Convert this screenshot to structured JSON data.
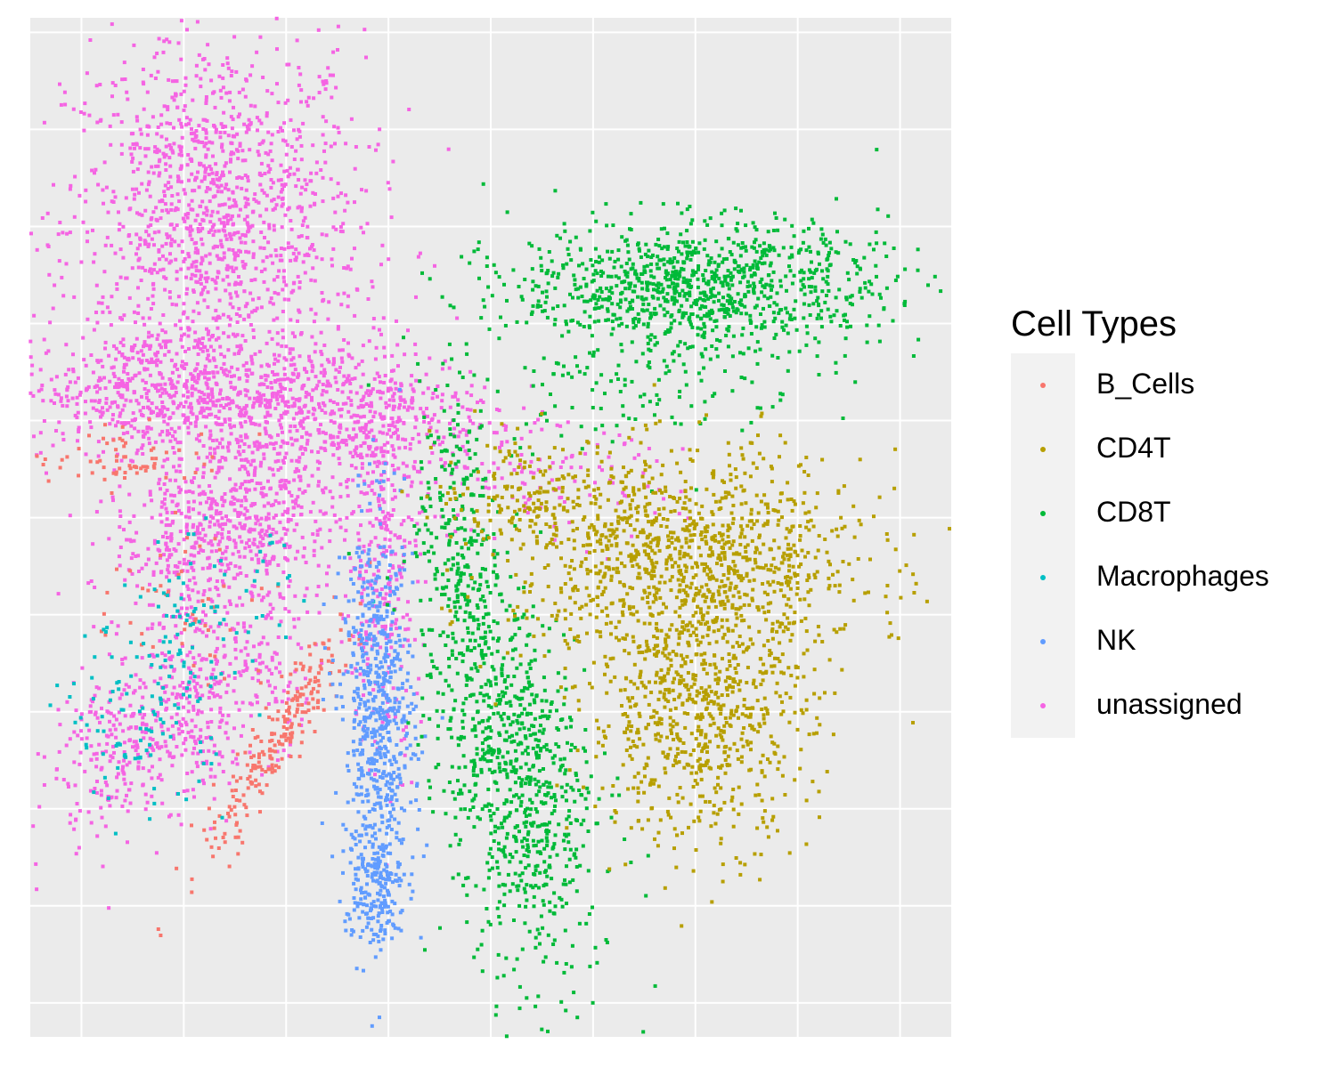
{
  "chart_data": {
    "type": "scatter",
    "title": "",
    "xlabel": "",
    "ylabel": "",
    "xlim": [
      -5.5,
      12.5
    ],
    "ylim": [
      -9.2,
      11.8
    ],
    "grid": true,
    "axis_ticks_shown": false,
    "legend": {
      "title": "Cell Types",
      "placement": "right",
      "entries": [
        {
          "label": "B_Cells",
          "color": "#F8766D"
        },
        {
          "label": "CD4T",
          "color": "#B79F00"
        },
        {
          "label": "CD8T",
          "color": "#00BA38"
        },
        {
          "label": "Macrophages",
          "color": "#00BFC4"
        },
        {
          "label": "NK",
          "color": "#619CFF"
        },
        {
          "label": "unassigned",
          "color": "#F564E3"
        }
      ]
    },
    "panel_background": "#EBEBEB",
    "gridline_color": "#FFFFFF",
    "series": [
      {
        "name": "unassigned",
        "color": "#F564E3",
        "clusters": [
          {
            "cx": -1.9,
            "cy": 7.5,
            "sx": 1.45,
            "sy": 2.0,
            "n": 1400
          },
          {
            "cx": -3.0,
            "cy": 4.1,
            "sx": 1.4,
            "sy": 0.6,
            "n": 500
          },
          {
            "cx": 0.3,
            "cy": 3.7,
            "sx": 1.6,
            "sy": 0.7,
            "n": 600
          },
          {
            "cx": -1.6,
            "cy": 1.3,
            "sx": 1.2,
            "sy": 0.9,
            "n": 700,
            "rot": 35
          },
          {
            "cx": -2.6,
            "cy": -2.6,
            "sx": 1.6,
            "sy": 0.8,
            "n": 600,
            "rot": 40
          },
          {
            "cx": 1.4,
            "cy": 0.8,
            "sx": 0.35,
            "sy": 2.2,
            "n": 300
          },
          {
            "cx": 4.2,
            "cy": 2.2,
            "sx": 1.5,
            "sy": 0.6,
            "n": 120
          }
        ]
      },
      {
        "name": "B_Cells",
        "color": "#F8766D",
        "clusters": [
          {
            "cx": -0.6,
            "cy": -3.0,
            "sx": 0.25,
            "sy": 1.4,
            "n": 220,
            "rot": -30
          },
          {
            "cx": -3.5,
            "cy": 2.7,
            "sx": 1.0,
            "sy": 0.3,
            "n": 70
          },
          {
            "cx": -2.5,
            "cy": -0.5,
            "sx": 1.0,
            "sy": 1.0,
            "n": 50
          }
        ]
      },
      {
        "name": "Macrophages",
        "color": "#00BFC4",
        "clusters": [
          {
            "cx": -3.2,
            "cy": -2.5,
            "sx": 0.8,
            "sy": 0.9,
            "n": 110
          },
          {
            "cx": -2.0,
            "cy": -0.5,
            "sx": 0.9,
            "sy": 0.8,
            "n": 70
          }
        ]
      },
      {
        "name": "NK",
        "color": "#619CFF",
        "clusters": [
          {
            "cx": 1.3,
            "cy": -2.8,
            "sx": 0.35,
            "sy": 2.1,
            "n": 700
          },
          {
            "cx": 1.2,
            "cy": -6.2,
            "sx": 0.3,
            "sy": 0.6,
            "n": 120
          }
        ]
      },
      {
        "name": "CD8T",
        "color": "#00BA38",
        "clusters": [
          {
            "cx": 7.6,
            "cy": 6.3,
            "sx": 1.8,
            "sy": 0.65,
            "n": 1000
          },
          {
            "cx": 3.9,
            "cy": -3.6,
            "sx": 0.7,
            "sy": 2.3,
            "n": 900,
            "rot": 10
          },
          {
            "cx": 2.8,
            "cy": 1.5,
            "sx": 0.35,
            "sy": 1.5,
            "n": 200
          },
          {
            "cx": 6.5,
            "cy": 4.5,
            "sx": 1.6,
            "sy": 0.8,
            "n": 150
          }
        ]
      },
      {
        "name": "CD4T",
        "color": "#B79F00",
        "clusters": [
          {
            "cx": 7.4,
            "cy": 0.6,
            "sx": 1.7,
            "sy": 1.1,
            "n": 1100
          },
          {
            "cx": 7.6,
            "cy": -2.6,
            "sx": 1.1,
            "sy": 1.3,
            "n": 700
          },
          {
            "cx": 4.2,
            "cy": 2.0,
            "sx": 0.9,
            "sy": 0.6,
            "n": 150
          }
        ]
      }
    ]
  }
}
